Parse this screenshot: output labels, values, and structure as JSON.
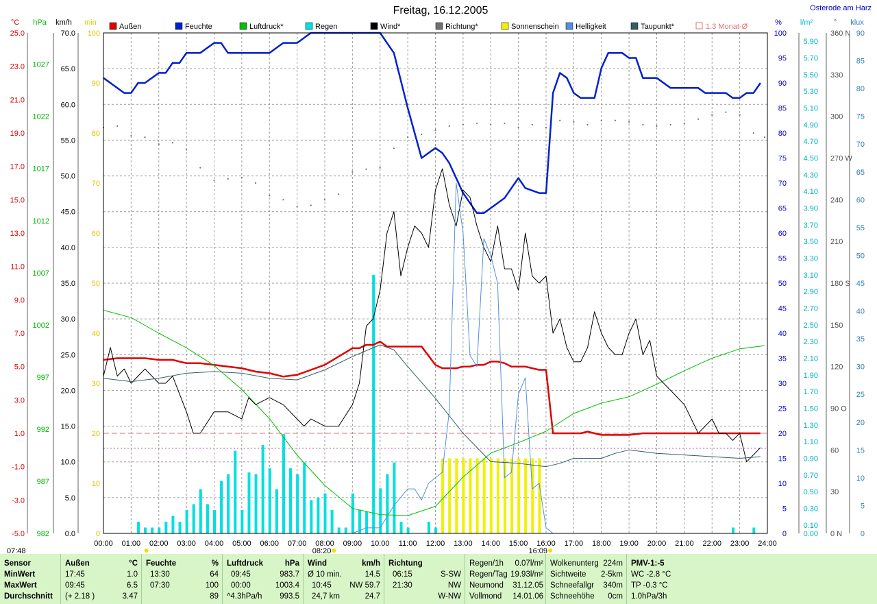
{
  "title": "Freitag, 16.12.2005",
  "location": "Osterode am Harz",
  "legend": [
    {
      "name": "Außen",
      "color": "#e00000"
    },
    {
      "name": "Feuchte",
      "color": "#0020d0"
    },
    {
      "name": "Luftdruck*",
      "color": "#00c000"
    },
    {
      "name": "Regen",
      "color": "#00e0e0"
    },
    {
      "name": "Wind*",
      "color": "#000000"
    },
    {
      "name": "Richtung*",
      "color": "#707070"
    },
    {
      "name": "Sonnenschein",
      "color": "#f0f000"
    },
    {
      "name": "Helligkeit",
      "color": "#5090e0"
    },
    {
      "name": "Taupunkt*",
      "color": "#306060"
    },
    {
      "name": "1.3 Monat-Ø",
      "color": "#e07070"
    }
  ],
  "axis_units": {
    "temp": "°C",
    "pressure": "hPa",
    "wind": "km/h",
    "min": "min",
    "humidity": "%",
    "rain": "l/m²",
    "direction": "°",
    "lux": "klux"
  },
  "axes": {
    "temp": [
      "25.0",
      "23.0",
      "21.0",
      "19.0",
      "17.0",
      "15.0",
      "13.0",
      "11.0",
      "9.0",
      "7.0",
      "5.0",
      "3.0",
      "1.0",
      "-1.0",
      "-3.0",
      "-5.0"
    ],
    "pressure": [
      "1027",
      "1022",
      "1017",
      "1012",
      "1007",
      "1002",
      "997",
      "992",
      "987",
      "982"
    ],
    "wind": [
      "70.0",
      "65.0",
      "60.0",
      "55.0",
      "50.0",
      "45.0",
      "40.0",
      "35.0",
      "30.0",
      "25.0",
      "20.0",
      "15.0",
      "10.0",
      "5.0",
      "0.0"
    ],
    "min": [
      "100",
      "90",
      "80",
      "70",
      "60",
      "50",
      "40",
      "30",
      "20",
      "10",
      "0"
    ],
    "humidity": [
      "100",
      "95",
      "90",
      "85",
      "80",
      "75",
      "70",
      "65",
      "60",
      "55",
      "50",
      "45",
      "40",
      "35",
      "30",
      "25",
      "20",
      "15",
      "10",
      "5",
      "0"
    ],
    "rain": [
      "5.90",
      "5.70",
      "5.50",
      "5.30",
      "5.10",
      "4.90",
      "4.70",
      "4.50",
      "4.30",
      "4.10",
      "3.90",
      "3.70",
      "3.50",
      "3.30",
      "3.10",
      "2.90",
      "2.70",
      "2.50",
      "2.30",
      "2.10",
      "1.90",
      "1.70",
      "1.50",
      "1.30",
      "1.10",
      "0.90",
      "0.70",
      "0.50",
      "0.30",
      "0.10",
      "0.00"
    ],
    "direction": [
      "360 N",
      "330",
      "300",
      "270 W",
      "240",
      "210",
      "180 S",
      "150",
      "120",
      "90  O",
      "60",
      "30",
      "0   N"
    ],
    "lux": [
      "90",
      "85",
      "80",
      "75",
      "70",
      "65",
      "60",
      "55",
      "50",
      "45",
      "40",
      "35",
      "30",
      "25",
      "20",
      "15",
      "10",
      "5",
      "0"
    ],
    "time": [
      "00:00",
      "01:00",
      "02:00",
      "03:00",
      "04:00",
      "05:00",
      "06:00",
      "07:00",
      "08:00",
      "09:00",
      "10:00",
      "11:00",
      "12:00",
      "13:00",
      "14:00",
      "15:00",
      "16:00",
      "17:00",
      "18:00",
      "19:00",
      "20:00",
      "21:00",
      "22:00",
      "23:00",
      "24:00"
    ]
  },
  "sun": {
    "rise": "07:48",
    "zenith": "08:20",
    "set": "16:09"
  },
  "chart_data": {
    "type": "line",
    "x_unit": "hours",
    "xlim": [
      0,
      24
    ],
    "reference_lines": {
      "temp_monthly_mean": 1.0,
      "humidity_level": 17
    },
    "series": [
      {
        "name": "Außen",
        "axis": "temp",
        "unit": "°C",
        "color": "#e00000",
        "x": [
          0,
          0.5,
          1,
          1.5,
          2,
          2.5,
          3,
          3.5,
          4,
          4.5,
          5,
          5.5,
          6,
          6.5,
          7,
          7.5,
          8,
          8.5,
          9,
          9.25,
          9.5,
          9.75,
          10,
          10.25,
          10.5,
          11,
          11.5,
          12,
          12.25,
          12.5,
          12.75,
          13,
          13.25,
          13.5,
          13.75,
          14,
          14.25,
          14.5,
          14.75,
          15,
          15.25,
          15.5,
          15.75,
          16,
          16.25,
          16.5,
          17,
          17.25,
          17.5,
          18,
          18.5,
          19,
          19.5,
          20,
          21,
          22,
          23,
          23.75
        ],
        "y": [
          5.4,
          5.5,
          5.5,
          5.5,
          5.4,
          5.4,
          5.2,
          5.2,
          5.1,
          5.0,
          4.9,
          4.7,
          4.6,
          4.4,
          4.5,
          4.8,
          5.1,
          5.6,
          6.1,
          6.1,
          6.3,
          6.3,
          6.5,
          6.2,
          6.2,
          6.2,
          6.2,
          5.1,
          4.9,
          4.9,
          4.9,
          5.0,
          5.0,
          5.1,
          5.1,
          5.3,
          5.3,
          5.2,
          5.0,
          5.0,
          5.0,
          4.9,
          4.8,
          4.8,
          1.0,
          1.0,
          1.0,
          1.0,
          1.1,
          0.9,
          0.9,
          0.9,
          1.0,
          1.0,
          1.0,
          1.0,
          1.0,
          1.0
        ]
      },
      {
        "name": "Feuchte",
        "axis": "humidity",
        "unit": "%",
        "color": "#0020d0",
        "x": [
          0,
          0.75,
          1,
          1.25,
          1.5,
          2,
          2.25,
          2.5,
          2.75,
          3,
          3.5,
          4,
          4.25,
          4.5,
          5,
          5.5,
          6,
          6.5,
          7,
          7.5,
          8,
          9,
          9.75,
          10,
          10.25,
          10.5,
          11,
          11.25,
          11.5,
          11.75,
          12,
          12.25,
          12.5,
          12.75,
          13,
          13.5,
          13.75,
          14,
          14.5,
          14.75,
          15,
          15.25,
          15.75,
          16,
          16.25,
          16.5,
          16.75,
          17,
          17.25,
          17.5,
          17.75,
          18,
          18.25,
          18.5,
          18.75,
          19,
          19.25,
          19.5,
          19.75,
          20,
          20.5,
          21,
          21.25,
          21.5,
          21.75,
          22,
          22.25,
          22.5,
          22.75,
          23,
          23.25,
          23.5,
          23.75
        ],
        "y": [
          91,
          88,
          88,
          90,
          90,
          92,
          92,
          94,
          94,
          96,
          96,
          98,
          98,
          96,
          96,
          96,
          96,
          98,
          98,
          100,
          100,
          100,
          100,
          100,
          98,
          96,
          85,
          80,
          75,
          76,
          77,
          76,
          74,
          71,
          68,
          64,
          64,
          65,
          67,
          69,
          71,
          69,
          68,
          68,
          88,
          92,
          91,
          88,
          87,
          87,
          87,
          93,
          96,
          96,
          96,
          95,
          95,
          91,
          91,
          91,
          89,
          89,
          89,
          89,
          88,
          88,
          88,
          88,
          87,
          87,
          88,
          88,
          90
        ]
      },
      {
        "name": "Luftdruck*",
        "axis": "pressure",
        "unit": "hPa",
        "color": "#00c000",
        "x": [
          0,
          1,
          2,
          3,
          4,
          5,
          6,
          7,
          8,
          9,
          10,
          11,
          12,
          13,
          14,
          15,
          16,
          17,
          18,
          19,
          20,
          21,
          22,
          23,
          23.9
        ],
        "y": [
          1003.4,
          1002.7,
          1001.2,
          999.8,
          998.1,
          995.8,
          993.0,
          989.5,
          986.6,
          984.4,
          983.8,
          983.7,
          984.6,
          987.4,
          989.7,
          990.7,
          991.8,
          993.5,
          994.5,
          995.1,
          996.3,
          997.6,
          998.8,
          999.7,
          1000.0
        ]
      },
      {
        "name": "Wind*",
        "axis": "wind",
        "unit": "km/h",
        "color": "#000000",
        "x": [
          0,
          0.25,
          0.5,
          0.75,
          1,
          1.5,
          2,
          2.25,
          2.5,
          3,
          3.25,
          3.5,
          4,
          4.5,
          5,
          5.25,
          5.5,
          6,
          6.5,
          7,
          7.25,
          7.5,
          8,
          8.5,
          9,
          9.25,
          9.5,
          9.75,
          10,
          10.25,
          10.5,
          10.75,
          11,
          11.25,
          11.5,
          11.75,
          12,
          12.25,
          12.5,
          12.75,
          13,
          13.25,
          13.5,
          13.75,
          14,
          14.25,
          14.5,
          14.75,
          15,
          15.25,
          15.5,
          15.75,
          16,
          16.25,
          16.5,
          16.75,
          17,
          17.25,
          17.5,
          17.75,
          18,
          18.25,
          18.5,
          18.75,
          19,
          19.25,
          19.5,
          19.75,
          20,
          20.25,
          20.5,
          21,
          21.25,
          21.5,
          22,
          22.25,
          22.5,
          22.75,
          23,
          23.25,
          23.5,
          23.75
        ],
        "y": [
          22,
          26,
          22,
          23,
          21,
          23,
          21,
          21,
          22,
          17,
          14,
          14,
          17,
          17,
          16,
          19,
          18,
          19,
          18,
          16,
          15,
          16,
          15,
          15,
          18,
          21,
          29,
          30,
          34,
          42,
          45,
          36,
          40,
          43,
          42,
          40,
          48,
          51,
          46,
          43,
          48,
          47,
          43,
          40,
          38,
          43,
          37,
          37,
          34,
          42,
          36,
          35,
          36,
          28,
          30,
          26,
          24,
          24,
          26,
          31,
          28,
          26,
          25,
          25,
          28,
          30,
          25,
          27,
          22,
          21,
          20,
          18,
          16,
          14,
          16,
          14,
          14,
          13,
          14,
          10,
          11,
          12
        ]
      },
      {
        "name": "Richtung*",
        "axis": "direction",
        "unit": "°",
        "color": "#707070",
        "x": [
          0,
          0.5,
          1,
          1.5,
          2,
          2.5,
          3,
          3.5,
          4,
          4.5,
          5,
          5.5,
          6,
          6.5,
          7,
          7.5,
          8,
          8.5,
          9,
          9.5,
          10,
          10.5,
          11,
          11.5,
          12,
          12.5,
          13,
          13.5,
          14,
          14.5,
          15,
          15.5,
          16,
          16.5,
          17,
          17.5,
          18,
          18.5,
          19,
          19.5,
          20,
          20.5,
          21,
          21.5,
          22,
          22.5,
          23,
          23.5,
          23.9
        ],
        "y": [
          292,
          293,
          286,
          285,
          280,
          281,
          276,
          263,
          254,
          255,
          256,
          252,
          243,
          240,
          235,
          236,
          240,
          244,
          260,
          262,
          263,
          277,
          285,
          287,
          290,
          293,
          294,
          295,
          294,
          295,
          292,
          294,
          292,
          297,
          296,
          294,
          297,
          297,
          296,
          294,
          293,
          294,
          295,
          298,
          301,
          303,
          301,
          288,
          285
        ]
      },
      {
        "name": "Regen",
        "axis": "rain",
        "unit": "l/m²",
        "color": "#00e0e0",
        "type": "bar",
        "x": [
          1.25,
          1.5,
          1.75,
          2,
          2.25,
          2.5,
          2.75,
          3,
          3.25,
          3.5,
          3.75,
          4,
          4.25,
          4.5,
          4.75,
          5,
          5.25,
          5.5,
          5.75,
          6,
          6.25,
          6.5,
          6.75,
          7,
          7.25,
          7.5,
          7.75,
          8,
          8.25,
          8.5,
          8.75,
          9,
          9.25,
          9.5,
          9.75,
          10,
          10.25,
          10.5,
          10.75,
          11,
          11.75,
          12,
          22.75,
          23.5
        ],
        "y": [
          0.14,
          0.07,
          0.07,
          0.07,
          0.14,
          0.21,
          0.14,
          0.28,
          0.35,
          0.53,
          0.35,
          0.28,
          0.63,
          0.71,
          0.99,
          0.28,
          0.73,
          0.71,
          1.06,
          0.78,
          0.53,
          1.19,
          0.78,
          0.71,
          0.85,
          0.4,
          0.43,
          0.48,
          0.28,
          0.07,
          0.07,
          0.48,
          0.28,
          0.26,
          3.1,
          0.54,
          0.71,
          0.85,
          0.14,
          0.07,
          0.14,
          0.07,
          0.07,
          0.07
        ]
      },
      {
        "name": "Sonnenschein",
        "axis": "min",
        "unit": "min",
        "color": "#f0f000",
        "type": "bar",
        "x": [
          12.25,
          12.5,
          12.75,
          13,
          13.25,
          13.5,
          13.75,
          14,
          14.25,
          14.5,
          14.75,
          15,
          15.25,
          15.5,
          15.75
        ],
        "y": [
          15,
          15,
          15,
          15,
          15,
          15,
          15,
          15,
          15,
          15,
          15,
          15,
          15,
          15,
          15
        ]
      },
      {
        "name": "Helligkeit",
        "axis": "lux",
        "unit": "klux",
        "color": "#5090e0",
        "x": [
          0,
          8,
          9,
          9.5,
          10,
          10.5,
          11,
          11.25,
          11.5,
          11.75,
          12,
          12.25,
          12.5,
          12.75,
          13,
          13.25,
          13.5,
          13.75,
          14,
          14.25,
          14.5,
          14.75,
          15,
          15.25,
          15.5,
          15.75,
          16,
          16.25,
          16.5,
          17,
          24
        ],
        "y": [
          0,
          0,
          0,
          1,
          1,
          5,
          8,
          8,
          6,
          9,
          10,
          11,
          22,
          63,
          54,
          32,
          30,
          53,
          50,
          45,
          10,
          11,
          25,
          28,
          8,
          9,
          1,
          0,
          0,
          0,
          0
        ]
      },
      {
        "name": "Taupunkt*",
        "axis": "temp",
        "unit": "°C",
        "color": "#306060",
        "x": [
          0,
          1,
          2,
          3,
          4,
          5,
          6,
          7,
          8,
          9,
          10,
          10.5,
          11,
          12,
          13,
          14,
          15,
          16,
          16.5,
          17,
          18,
          18.5,
          19,
          20,
          21,
          22,
          23,
          23.75
        ],
        "y": [
          4.3,
          4.1,
          4.3,
          4.6,
          4.7,
          4.6,
          4.3,
          4.2,
          4.8,
          5.6,
          6.3,
          6.0,
          5.0,
          3.1,
          1.0,
          -0.7,
          -0.8,
          -1.0,
          -0.8,
          -0.5,
          -0.5,
          -0.2,
          0.0,
          -0.2,
          -0.3,
          -0.4,
          -0.5,
          -0.4
        ]
      }
    ]
  },
  "summary": {
    "labels": {
      "header": "Sensor",
      "min": "MinWert",
      "max": "MaxWert",
      "avg": "Durchschnitt"
    },
    "outside": {
      "title": "Außen",
      "unit": "°C",
      "min_time": "17:45",
      "min_val": "1.0",
      "max_time": "09:45",
      "max_val": "6.5",
      "avg_note": "(+ 2.18 )",
      "avg_val": "3.47"
    },
    "humidity": {
      "title": "Feuchte",
      "unit": "%",
      "min_time": "13:30",
      "min_val": "64",
      "max_time": "07:30",
      "max_val": "100",
      "avg_val": "89"
    },
    "pressure": {
      "title": "Luftdruck",
      "unit": "hPa",
      "min_time": "09:45",
      "min_val": "983.7",
      "max_time": "00:00",
      "max_val": "1003.4",
      "avg_note": "^4.3hPa/h",
      "avg_val": "993.5"
    },
    "wind": {
      "title": "Wind",
      "unit": "km/h",
      "r1a": "Ø 10 min.",
      "r1b": "14.5",
      "r2a": "10:45",
      "r2b": "NW 59.7",
      "r3a": "24,7 km",
      "r3b": "24.7"
    },
    "direction": {
      "title": "Richtung",
      "r1a": "06:15",
      "r1b": "S-SW",
      "r2a": "21:30",
      "r2b": "NW",
      "r3b": "W-NW"
    },
    "rain": {
      "r0a": "Regen/1h",
      "r0b": "0.07l/m²",
      "r1a": "Regen/Tag",
      "r1b": "19.93l/m²",
      "r2a": "Neumond",
      "r2b": "31.12.05",
      "r3a": "Vollmond",
      "r3b": "14.01.06"
    },
    "cloud": {
      "r0a": "Wolkenunterg",
      "r0b": "224m",
      "r1a": "Sichtweite",
      "r1b": "2-5km",
      "r2a": "Schneefallgr",
      "r2b": "340m",
      "r3a": "Schneehöhe",
      "r3b": "0cm"
    },
    "pmv": {
      "title": "PMV-1:-5",
      "r1": "WC -2.8 °C",
      "r2": "TP -0.3 °C",
      "r3": "1.0hPa/3h"
    }
  }
}
